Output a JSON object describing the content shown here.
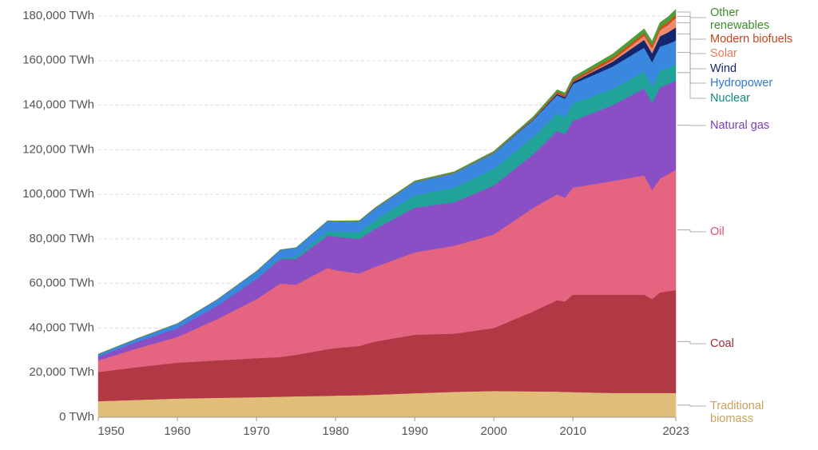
{
  "chart_data": {
    "type": "stacked-area",
    "x": [
      1950,
      1955,
      1960,
      1965,
      1970,
      1973,
      1975,
      1979,
      1980,
      1983,
      1985,
      1990,
      1995,
      2000,
      2005,
      2008,
      2009,
      2010,
      2015,
      2019,
      2020,
      2021,
      2022,
      2023
    ],
    "xlim": [
      1950,
      2023
    ],
    "xticks": [
      1950,
      1960,
      1970,
      1980,
      1990,
      2000,
      2010,
      2023
    ],
    "ylim": [
      0,
      180000
    ],
    "yticks": [
      {
        "value": 0,
        "label": "0 TWh"
      },
      {
        "value": 20000,
        "label": "20,000 TWh"
      },
      {
        "value": 40000,
        "label": "40,000 TWh"
      },
      {
        "value": 60000,
        "label": "60,000 TWh"
      },
      {
        "value": 80000,
        "label": "80,000 TWh"
      },
      {
        "value": 100000,
        "label": "100,000 TWh"
      },
      {
        "value": 120000,
        "label": "120,000 TWh"
      },
      {
        "value": 140000,
        "label": "140,000 TWh"
      },
      {
        "value": 160000,
        "label": "160,000 TWh"
      },
      {
        "value": 180000,
        "label": "180,000 TWh"
      }
    ],
    "grid": true,
    "series": [
      {
        "name": "Traditional biomass",
        "color": "#e0bd78",
        "label_color": "#c9a25c",
        "values": [
          7200,
          7800,
          8400,
          8700,
          9000,
          9200,
          9400,
          9600,
          9700,
          9900,
          10100,
          10800,
          11400,
          11800,
          11600,
          11500,
          11400,
          11300,
          10900,
          10900,
          10900,
          10900,
          10900,
          10900
        ]
      },
      {
        "name": "Coal",
        "color": "#b13845",
        "label_color": "#9e2a36",
        "values": [
          13100,
          14700,
          16100,
          16800,
          17500,
          17800,
          18600,
          20900,
          21300,
          22100,
          23900,
          26200,
          26100,
          28200,
          35900,
          41000,
          40600,
          43700,
          44100,
          44100,
          42100,
          45100,
          45600,
          46100
        ]
      },
      {
        "name": "Oil",
        "color": "#e5647f",
        "label_color": "#dd4f6e",
        "values": [
          5200,
          8500,
          11500,
          18500,
          26500,
          33000,
          31500,
          36500,
          35000,
          32500,
          33500,
          37000,
          39500,
          42000,
          46500,
          47500,
          46500,
          48000,
          51000,
          53500,
          49000,
          51000,
          52500,
          54000
        ]
      },
      {
        "name": "Natural gas",
        "color": "#8a4fc4",
        "label_color": "#7a3fb3",
        "values": [
          1800,
          3000,
          4000,
          6000,
          9000,
          11000,
          11500,
          14500,
          15000,
          15500,
          17000,
          20000,
          19500,
          22000,
          24000,
          28500,
          28500,
          30000,
          34000,
          39000,
          39000,
          41000,
          40500,
          40000
        ]
      },
      {
        "name": "Nuclear",
        "color": "#22a39a",
        "label_color": "#138a82",
        "values": [
          0,
          0,
          0,
          100,
          200,
          500,
          1000,
          2000,
          2200,
          3000,
          4000,
          5600,
          6500,
          7400,
          7900,
          7700,
          7600,
          7800,
          7200,
          7600,
          7300,
          7500,
          7100,
          7200
        ]
      },
      {
        "name": "Hydropower",
        "color": "#3a87e0",
        "label_color": "#2f78d0",
        "values": [
          1000,
          1400,
          2000,
          2600,
          3300,
          3600,
          4000,
          4600,
          4700,
          5000,
          5200,
          5900,
          6500,
          7100,
          7600,
          8300,
          8300,
          8700,
          10100,
          10700,
          11000,
          10800,
          10900,
          10800
        ]
      },
      {
        "name": "Wind",
        "color": "#14276e",
        "label_color": "#14276e",
        "values": [
          0,
          0,
          0,
          0,
          0,
          0,
          0,
          0,
          0,
          0,
          0,
          10,
          20,
          80,
          250,
          560,
          700,
          900,
          2200,
          3500,
          4000,
          4600,
          5100,
          5900
        ]
      },
      {
        "name": "Solar",
        "color": "#f08a6a",
        "label_color": "#ea7a58",
        "values": [
          0,
          0,
          0,
          0,
          0,
          0,
          0,
          0,
          0,
          0,
          0,
          0,
          0,
          0,
          10,
          30,
          50,
          90,
          650,
          1800,
          2200,
          2700,
          3300,
          4200
        ]
      },
      {
        "name": "Modern biofuels",
        "color": "#c8501f",
        "label_color": "#c2471b",
        "values": [
          0,
          0,
          0,
          0,
          0,
          0,
          0,
          0,
          30,
          50,
          100,
          150,
          150,
          200,
          400,
          900,
          900,
          1000,
          1200,
          1300,
          1200,
          1300,
          1400,
          1500
        ]
      },
      {
        "name": "Other renewables",
        "color": "#4e9c3a",
        "label_color": "#3f8c2c",
        "values": [
          10,
          20,
          30,
          40,
          50,
          60,
          70,
          100,
          120,
          200,
          250,
          400,
          500,
          600,
          800,
          950,
          1000,
          1100,
          1600,
          1900,
          2000,
          2200,
          2300,
          2400
        ]
      }
    ]
  }
}
